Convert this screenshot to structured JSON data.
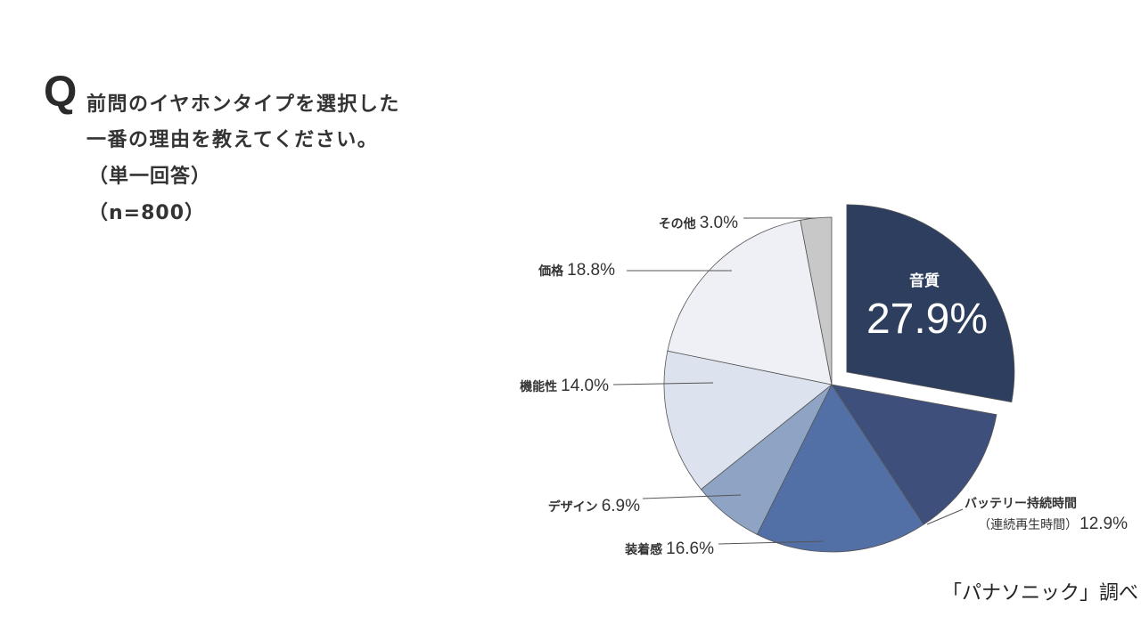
{
  "question": {
    "prefix": "Q",
    "lines": [
      "前問のイヤホンタイプを選択した",
      "一番の理由を教えてください。"
    ],
    "note_answer": "（単一回答）",
    "note_sample": "（n=800）"
  },
  "source": "「パナソニック」調べ",
  "chart_data": {
    "type": "pie",
    "unit": "%",
    "slices": [
      {
        "label": "音質",
        "value": 27.9,
        "color": "#2e3e5f",
        "exploded": true
      },
      {
        "label": "バッテリー持続時間",
        "label_sub": "（連続再生時間）",
        "value": 12.9,
        "color": "#3e4f7c"
      },
      {
        "label": "装着感",
        "value": 16.6,
        "color": "#5270a6"
      },
      {
        "label": "デザイン",
        "value": 6.9,
        "color": "#8fa3c5"
      },
      {
        "label": "機能性",
        "value": 14.0,
        "color": "#dde3ee"
      },
      {
        "label": "価格",
        "value": 18.8,
        "color": "#eef0f5"
      },
      {
        "label": "その他",
        "value": 3.0,
        "color": "#c8c8c8"
      }
    ]
  }
}
